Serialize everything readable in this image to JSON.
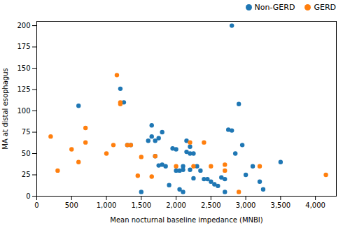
{
  "chart_data": {
    "type": "scatter",
    "xlabel": "Mean nocturnal baseline impedance (MNBI)",
    "ylabel": "MA at distal esophagus",
    "series": [
      {
        "name": "Non-GERD",
        "color": "#1f77b4",
        "x": [
          600,
          1200,
          1250,
          1300,
          1350,
          1500,
          1600,
          1650,
          1650,
          1700,
          1700,
          1750,
          1750,
          1800,
          1800,
          1850,
          1900,
          1950,
          2000,
          2000,
          2050,
          2050,
          2100,
          2100,
          2100,
          2150,
          2150,
          2200,
          2200,
          2200,
          2250,
          2250,
          2300,
          2350,
          2400,
          2450,
          2500,
          2550,
          2600,
          2650,
          2700,
          2700,
          2750,
          2800,
          2850,
          2900,
          2950,
          3000,
          3100,
          3200,
          3250,
          3500,
          2800
        ],
        "values": [
          106,
          126,
          110,
          60,
          60,
          5,
          65,
          70,
          83,
          47,
          65,
          36,
          68,
          37,
          75,
          35,
          13,
          56,
          55,
          30,
          30,
          8,
          5,
          31,
          35,
          52,
          65,
          31,
          50,
          58,
          21,
          50,
          35,
          30,
          20,
          20,
          17,
          14,
          12,
          22,
          5,
          20,
          78,
          77,
          50,
          108,
          60,
          25,
          35,
          17,
          8,
          40,
          200
        ]
      },
      {
        "name": "GERD",
        "color": "#ff7f0e",
        "x": [
          200,
          300,
          500,
          600,
          700,
          700,
          1000,
          1100,
          1150,
          1200,
          1200,
          1300,
          1350,
          1450,
          1500,
          1650,
          1700,
          2000,
          2200,
          2250,
          2400,
          2500,
          2700,
          2700,
          2900,
          3200,
          4150
        ],
        "values": [
          70,
          30,
          55,
          40,
          63,
          80,
          50,
          60,
          142,
          108,
          110,
          60,
          60,
          24,
          46,
          23,
          47,
          35,
          63,
          35,
          63,
          35,
          30,
          37,
          5,
          35,
          25
        ]
      }
    ],
    "xlim": [
      0,
      4300
    ],
    "ylim": [
      0,
      205
    ],
    "xticks": [
      0,
      500,
      1000,
      1500,
      2000,
      2500,
      3000,
      3500,
      4000
    ],
    "yticks": [
      0,
      25,
      50,
      75,
      100,
      125,
      150,
      175,
      200
    ],
    "legend": "upper right"
  }
}
